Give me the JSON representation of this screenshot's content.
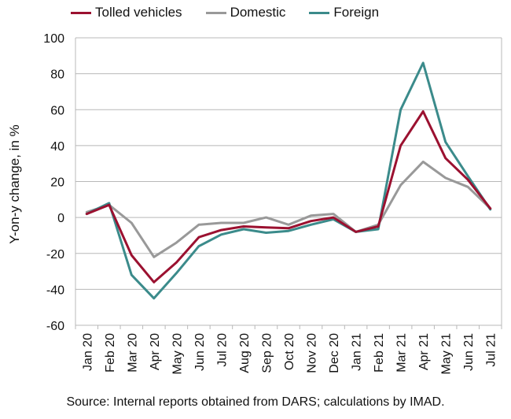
{
  "chart_data": {
    "type": "line",
    "title": "",
    "xlabel": "",
    "ylabel": "Y-on-y change, in %",
    "ylim": [
      -60,
      100
    ],
    "yticks": [
      100,
      80,
      60,
      40,
      20,
      0,
      -20,
      -40,
      -60
    ],
    "grid": "horizontal",
    "legend_position": "top",
    "categories": [
      "Jan 20",
      "Feb 20",
      "Mar 20",
      "Apr 20",
      "May 20",
      "Jun 20",
      "Jul 20",
      "Aug 20",
      "Sep 20",
      "Oct 20",
      "Nov 20",
      "Dec 20",
      "Jan 21",
      "Feb 21",
      "Mar 21",
      "Apr 21",
      "May 21",
      "Jun 21",
      "Jul 21"
    ],
    "series": [
      {
        "name": "Tolled vehicles",
        "color": "#9b1130",
        "values": [
          2,
          7,
          -21,
          -36,
          -25,
          -11,
          -7,
          -5,
          -5.5,
          -6,
          -2,
          0,
          -8,
          -5,
          40,
          59,
          33,
          21,
          5
        ]
      },
      {
        "name": "Domestic",
        "color": "#999999",
        "values": [
          3,
          7,
          -3,
          -22,
          -14,
          -4,
          -3,
          -3,
          0,
          -4,
          1,
          2,
          -8,
          -4,
          18,
          31,
          22,
          17,
          5
        ]
      },
      {
        "name": "Foreign",
        "color": "#3b8b8b",
        "values": [
          2,
          8,
          -32,
          -45,
          -31,
          -16,
          -9.5,
          -6.5,
          -8.5,
          -7.5,
          -4,
          -1,
          -8,
          -6.5,
          60,
          86,
          42,
          23,
          4.5
        ]
      }
    ]
  },
  "source_note": "Source: Internal reports obtained from DARS; calculations by IMAD."
}
